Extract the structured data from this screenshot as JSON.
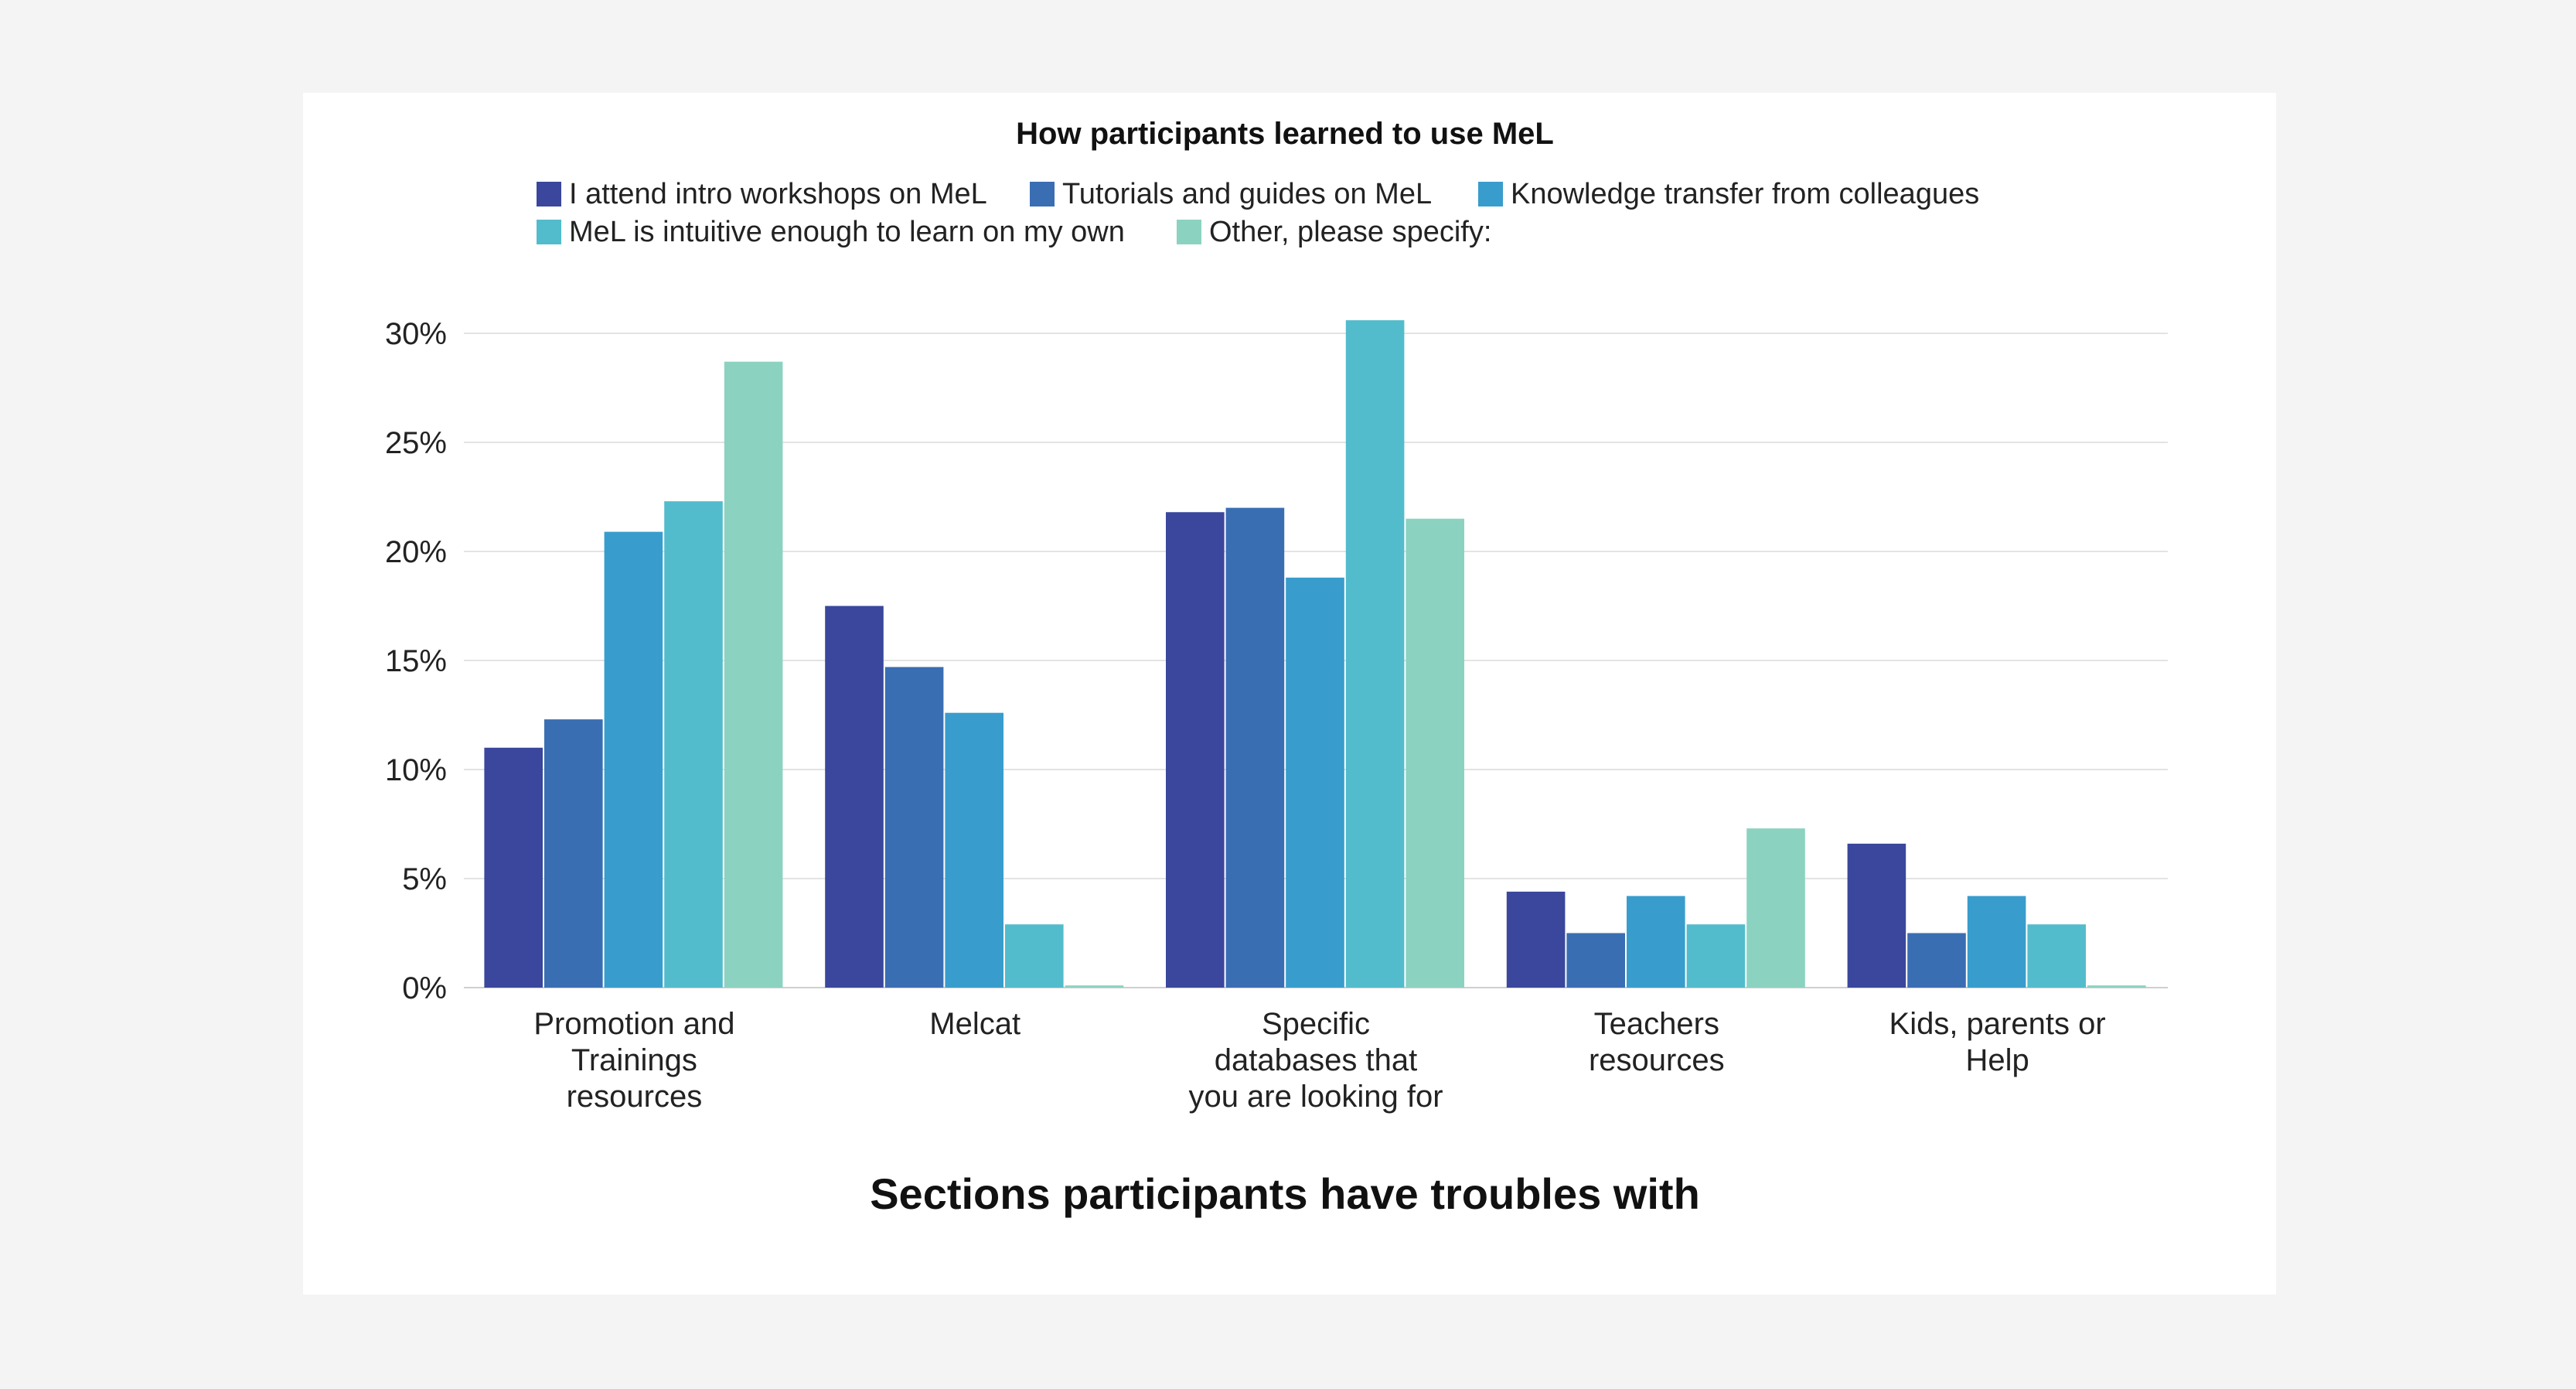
{
  "chart_data": {
    "type": "bar",
    "title": "How participants learned to use MeL",
    "xlabel": "Sections participants have troubles with",
    "ylabel": "",
    "ylim": [
      0,
      30
    ],
    "yticks": [
      "0%",
      "5%",
      "10%",
      "15%",
      "20%",
      "25%",
      "30%"
    ],
    "grid": true,
    "legend_position": "top",
    "categories": [
      [
        "Promotion and",
        "Trainings",
        "resources"
      ],
      [
        "Melcat"
      ],
      [
        "Specific",
        "databases that",
        "you are looking for"
      ],
      [
        "Teachers",
        "resources"
      ],
      [
        "Kids, parents or",
        "Help"
      ]
    ],
    "series": [
      {
        "name": "I attend intro workshops on MeL",
        "color": "#3a479c",
        "values": [
          11.0,
          17.5,
          21.8,
          4.4,
          6.6
        ]
      },
      {
        "name": "Tutorials and guides on MeL",
        "color": "#3a6eb3",
        "values": [
          12.3,
          14.7,
          22.0,
          2.5,
          2.5
        ]
      },
      {
        "name": "Knowledge transfer from colleagues",
        "color": "#389dcc",
        "values": [
          20.9,
          12.6,
          18.8,
          4.2,
          4.2
        ]
      },
      {
        "name": "MeL is intuitive enough to learn on my own",
        "color": "#52bccc",
        "values": [
          22.3,
          2.9,
          30.6,
          2.9,
          2.9
        ]
      },
      {
        "name": "Other, please specify:",
        "color": "#8bd3c0",
        "values": [
          28.7,
          0.1,
          21.5,
          7.3,
          0.1
        ]
      }
    ]
  }
}
